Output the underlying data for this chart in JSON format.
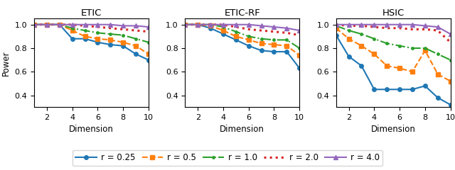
{
  "x": [
    1,
    2,
    3,
    4,
    5,
    6,
    7,
    8,
    9,
    10
  ],
  "ETIC": {
    "r025": [
      1.0,
      1.0,
      1.0,
      0.88,
      0.88,
      0.85,
      0.83,
      0.82,
      0.75,
      0.7
    ],
    "r05": [
      1.0,
      1.0,
      1.0,
      0.95,
      0.9,
      0.88,
      0.87,
      0.85,
      0.82,
      0.75
    ],
    "r10": [
      1.0,
      1.0,
      1.0,
      0.97,
      0.95,
      0.93,
      0.92,
      0.91,
      0.88,
      0.85
    ],
    "r20": [
      1.0,
      1.0,
      1.0,
      1.0,
      0.99,
      0.98,
      0.97,
      0.96,
      0.95,
      0.94
    ],
    "r40": [
      1.0,
      1.0,
      1.0,
      1.0,
      1.0,
      1.0,
      1.0,
      0.99,
      0.99,
      0.98
    ]
  },
  "ETIC_RF": {
    "r025": [
      1.0,
      1.0,
      0.97,
      0.92,
      0.87,
      0.82,
      0.78,
      0.77,
      0.77,
      0.63
    ],
    "r05": [
      1.0,
      1.0,
      0.99,
      0.95,
      0.9,
      0.87,
      0.84,
      0.83,
      0.82,
      0.74
    ],
    "r10": [
      1.0,
      1.0,
      1.0,
      0.98,
      0.94,
      0.9,
      0.88,
      0.87,
      0.87,
      0.8
    ],
    "r20": [
      1.0,
      1.0,
      1.0,
      1.0,
      0.98,
      0.96,
      0.95,
      0.94,
      0.93,
      0.91
    ],
    "r40": [
      1.0,
      1.0,
      1.0,
      1.0,
      1.0,
      1.0,
      0.99,
      0.98,
      0.97,
      0.95
    ]
  },
  "HSIC": {
    "r025": [
      0.91,
      0.73,
      0.65,
      0.45,
      0.45,
      0.45,
      0.45,
      0.48,
      0.38,
      0.32
    ],
    "r05": [
      0.97,
      0.88,
      0.82,
      0.75,
      0.65,
      0.63,
      0.6,
      0.78,
      0.58,
      0.52
    ],
    "r10": [
      0.99,
      0.95,
      0.92,
      0.88,
      0.84,
      0.82,
      0.8,
      0.8,
      0.75,
      0.7
    ],
    "r20": [
      1.0,
      0.99,
      0.99,
      0.98,
      0.97,
      0.97,
      0.96,
      0.96,
      0.95,
      0.85
    ],
    "r40": [
      1.0,
      1.0,
      1.0,
      1.0,
      1.0,
      1.0,
      1.0,
      0.99,
      0.98,
      0.92
    ]
  },
  "colors": {
    "r025": "#1f77b4",
    "r05": "#ff7f0e",
    "r10": "#2ca02c",
    "r20": "#d62728",
    "r40": "#9467bd"
  },
  "titles": [
    "ETIC",
    "ETIC-RF",
    "HSIC"
  ],
  "xlabel": "Dimension",
  "ylabel": "Power",
  "legend_labels": [
    "r = 0.25",
    "r = 0.5",
    "r = 1.0",
    "r = 2.0",
    "r = 4.0"
  ],
  "ylim_all": [
    0.3,
    1.05
  ],
  "yticks_all": [
    0.4,
    0.6,
    0.8,
    1.0
  ]
}
